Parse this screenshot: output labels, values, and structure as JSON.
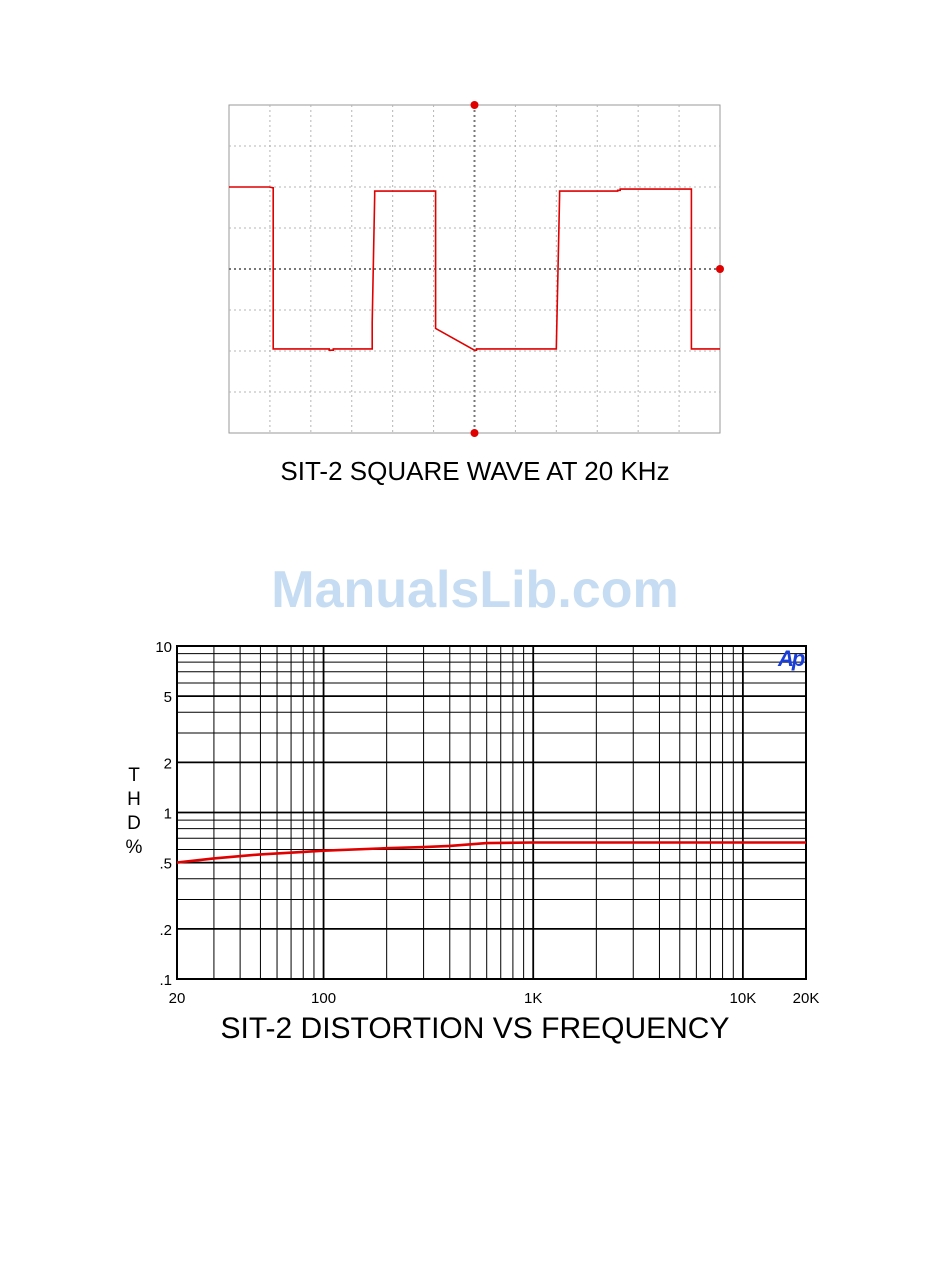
{
  "watermark": "ManualsLib.com",
  "logo_text": "Ap",
  "chart_data": [
    {
      "type": "line",
      "title": "SIT-2 SQUARE WAVE AT 20 KHz",
      "grid": true,
      "divisions": {
        "x": 6,
        "y": 8
      },
      "series": [
        {
          "color": "#e00000",
          "x": [
            0,
            0.98,
            1.08,
            1.08,
            2.45,
            2.45,
            2.55,
            2.55,
            3.5,
            3.5,
            3.56,
            3.56,
            4.98,
            5.05,
            5.05,
            6.0,
            6.0,
            6.05,
            6.05,
            8.0,
            8.0,
            8.08,
            8.08,
            9.5,
            9.5,
            9.56,
            9.56,
            11.3,
            11.3,
            12.0
          ],
          "y": [
            2.0,
            2.0,
            1.98,
            -1.95,
            -1.95,
            -1.98,
            -1.98,
            -1.95,
            -1.95,
            -1.3,
            1.8,
            1.9,
            1.9,
            1.9,
            -1.45,
            -1.98,
            -1.98,
            -1.98,
            -1.95,
            -1.95,
            -1.95,
            1.8,
            1.9,
            1.9,
            1.92,
            1.92,
            1.95,
            1.95,
            -1.95,
            -1.95
          ]
        }
      ]
    },
    {
      "type": "line",
      "title": "SIT-2 DISTORTION VS FREQUENCY",
      "ylabel": [
        "T",
        "H",
        "D",
        "",
        "%"
      ],
      "x_scale": "log",
      "y_scale": "log",
      "xlim": [
        20,
        20000
      ],
      "ylim": [
        0.1,
        10
      ],
      "x_ticks": [
        20,
        100,
        1000,
        10000,
        20000
      ],
      "x_tick_labels": [
        "20",
        "100",
        "1K",
        "10K",
        "20K"
      ],
      "y_ticks": [
        0.1,
        0.2,
        0.5,
        1,
        2,
        5,
        10
      ],
      "y_tick_labels": [
        ".1",
        ".2",
        ".5",
        "1",
        "2",
        "5",
        "10"
      ],
      "grid": true,
      "series": [
        {
          "color": "#e00000",
          "x": [
            20,
            30,
            50,
            80,
            100,
            200,
            300,
            400,
            600,
            1000,
            2000,
            5000,
            10000,
            20000
          ],
          "y": [
            0.5,
            0.53,
            0.56,
            0.58,
            0.59,
            0.61,
            0.62,
            0.63,
            0.655,
            0.66,
            0.66,
            0.66,
            0.66,
            0.66
          ]
        }
      ]
    }
  ]
}
